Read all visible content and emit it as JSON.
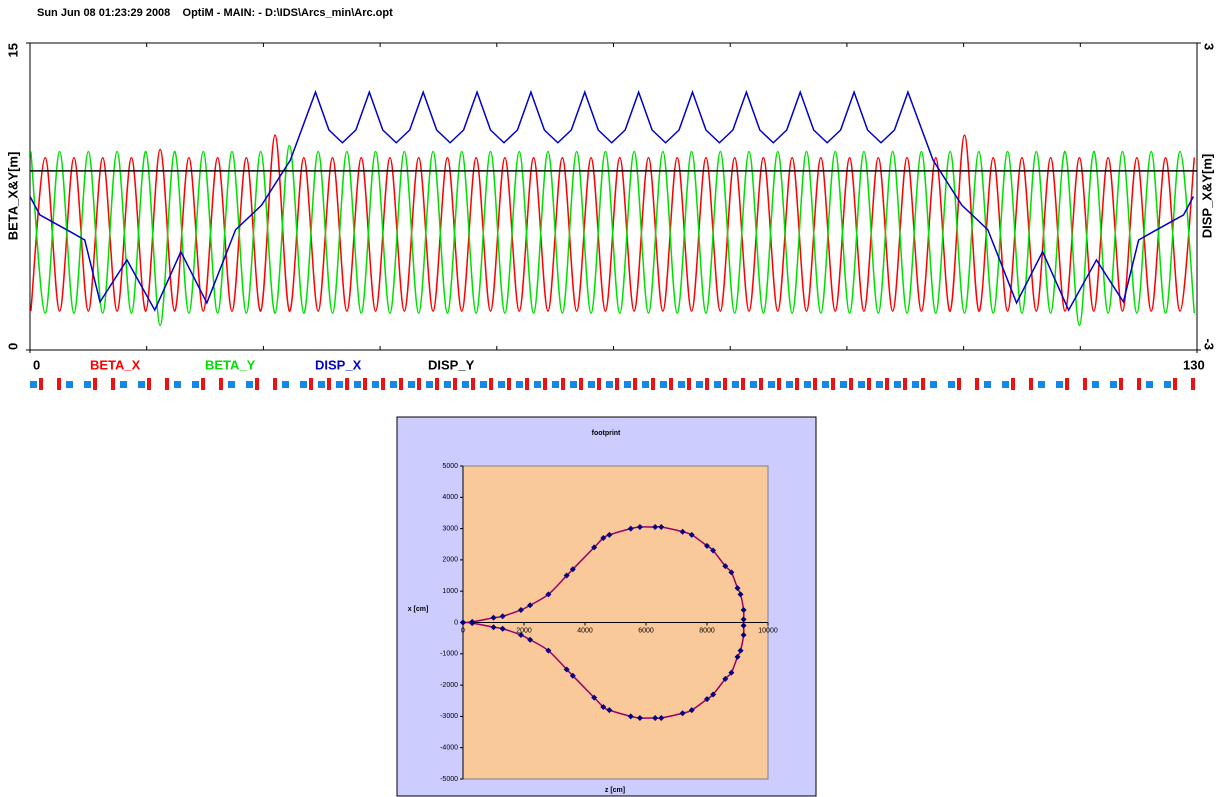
{
  "chart_data": [
    {
      "type": "line",
      "title": "Sun Jun 08 01:23:29 2008    OptiM - MAIN: - D:\\IDS\\Arcs_min\\Arc.opt",
      "y_label": "BETA_X&Y[m]",
      "y2_label": "DISP_X&Y[m]",
      "xlim": [
        0,
        130
      ],
      "xticks": [
        0,
        130
      ],
      "ylim": [
        0,
        15
      ],
      "yticks": [
        0,
        15
      ],
      "y2lim": [
        -3,
        3
      ],
      "y2ticks": [
        -3,
        3
      ],
      "x": [
        0.1,
        1.7,
        3.3,
        4.9,
        6.5,
        8.1,
        9.7,
        11.3,
        12.9,
        14.5,
        16.1,
        17.7,
        19.3,
        20.9,
        22.5,
        24.1,
        25.7,
        27.3,
        28.9,
        30.5,
        32.1,
        33.7,
        35.3,
        36.9,
        38.5,
        40.1,
        41.7,
        43.3,
        44.9,
        46.5,
        48.1,
        49.7,
        51.3,
        52.9,
        54.5,
        56.1,
        57.7,
        59.3,
        60.9,
        62.5,
        64.1,
        65.7,
        67.3,
        68.9,
        70.5,
        72.1,
        73.7,
        75.3,
        76.9,
        78.5,
        80.1,
        81.7,
        83.3,
        84.9,
        86.5,
        88.1,
        89.7,
        91.3,
        92.9,
        94.5,
        96.1,
        97.7,
        99.3,
        100.9,
        102.5,
        104.1,
        105.7,
        107.3,
        108.9,
        110.5,
        112.1,
        113.7,
        115.3,
        116.9,
        118.5,
        120.1,
        121.7,
        123.3,
        124.9,
        126.5,
        128.1,
        129.7
      ],
      "series": [
        {
          "name": "BETA_X",
          "color": "#ff0000",
          "values": [
            1.9,
            9.4,
            1.9,
            9.4,
            1.9,
            9.4,
            1.9,
            9.4,
            1.9,
            9.8,
            1.9,
            9.4,
            1.9,
            9.4,
            1.9,
            9.4,
            1.9,
            10.5,
            1.9,
            9.4,
            1.9,
            9.4,
            1.9,
            9.4,
            1.9,
            9.4,
            1.9,
            9.4,
            1.9,
            9.4,
            1.9,
            9.4,
            1.9,
            9.4,
            1.9,
            9.4,
            1.9,
            9.4,
            1.9,
            9.4,
            1.9,
            9.4,
            1.9,
            9.4,
            1.9,
            9.4,
            1.9,
            9.4,
            1.9,
            9.4,
            1.9,
            9.4,
            1.9,
            9.4,
            1.9,
            9.4,
            1.9,
            9.4,
            1.9,
            9.4,
            1.9,
            9.4,
            1.9,
            9.4,
            1.9,
            10.5,
            1.9,
            9.4,
            1.9,
            9.4,
            1.9,
            9.4,
            1.9,
            9.4,
            1.9,
            9.4,
            1.9,
            9.4,
            1.9,
            9.4,
            1.9,
            9.4
          ]
        },
        {
          "name": "BETA_Y",
          "color": "#00e000",
          "values": [
            9.7,
            1.8,
            9.7,
            1.8,
            9.7,
            1.8,
            9.7,
            1.8,
            9.7,
            1.2,
            9.7,
            1.8,
            9.7,
            1.8,
            9.7,
            1.8,
            9.7,
            1.8,
            10.0,
            1.8,
            9.7,
            1.8,
            9.7,
            1.8,
            9.7,
            1.8,
            9.7,
            1.8,
            9.7,
            1.8,
            9.7,
            1.8,
            9.7,
            1.8,
            9.7,
            1.8,
            9.7,
            1.8,
            9.7,
            1.8,
            9.7,
            1.8,
            9.7,
            1.8,
            9.7,
            1.8,
            9.7,
            1.8,
            9.7,
            1.8,
            9.7,
            1.8,
            9.7,
            1.8,
            9.7,
            1.8,
            9.7,
            1.8,
            9.7,
            1.8,
            9.7,
            1.8,
            9.7,
            1.8,
            9.7,
            1.8,
            9.7,
            1.8,
            9.7,
            1.8,
            9.7,
            1.8,
            9.7,
            1.2,
            9.7,
            1.8,
            9.7,
            1.8,
            9.7,
            1.8,
            9.7,
            1.8
          ]
        },
        {
          "name": "DISP_X",
          "color": "#0000cc",
          "axis": "y2",
          "x": [
            0,
            1.1,
            4.5,
            6.1,
            7.8,
            10.8,
            13.9,
            16.8,
            19.7,
            22.9,
            25.8,
            29.0,
            31.8,
            33.3,
            34.8,
            36.3,
            37.8,
            39.3,
            40.8,
            42.3,
            43.8,
            45.3,
            46.8,
            48.3,
            49.8,
            51.3,
            52.8,
            54.3,
            55.8,
            57.3,
            58.8,
            60.3,
            61.8,
            63.3,
            64.8,
            66.3,
            67.8,
            69.3,
            70.8,
            72.3,
            73.8,
            75.3,
            76.8,
            78.3,
            79.8,
            81.3,
            82.8,
            84.3,
            85.8,
            87.3,
            88.8,
            90.3,
            91.8,
            93.3,
            94.8,
            96.3,
            97.8,
            100.6,
            103.8,
            106.7,
            109.9,
            112.8,
            115.7,
            118.8,
            121.8,
            123.5,
            125.1,
            128.5,
            129.6
          ],
          "values": [
            0.0,
            -0.36,
            -0.69,
            -0.85,
            -2.06,
            -1.24,
            -2.22,
            -1.08,
            -2.08,
            -0.65,
            -0.17,
            0.71,
            2.04,
            1.3,
            1.05,
            1.3,
            2.04,
            1.3,
            1.05,
            1.3,
            2.04,
            1.3,
            1.05,
            1.3,
            2.04,
            1.3,
            1.05,
            1.3,
            2.04,
            1.3,
            1.05,
            1.3,
            2.04,
            1.3,
            1.05,
            1.3,
            2.04,
            1.3,
            1.05,
            1.3,
            2.04,
            1.3,
            1.05,
            1.3,
            2.04,
            1.3,
            1.05,
            1.3,
            2.04,
            1.3,
            1.05,
            1.3,
            2.04,
            1.3,
            1.05,
            1.3,
            2.04,
            0.71,
            -0.17,
            -0.65,
            -2.08,
            -1.08,
            -2.22,
            -1.24,
            -2.06,
            -0.85,
            -0.69,
            -0.36,
            0.0
          ]
        },
        {
          "name": "DISP_Y",
          "color": "#000000",
          "axis": "y2",
          "x": [
            0,
            130
          ],
          "values": [
            0.5,
            0.5
          ]
        }
      ]
    },
    {
      "type": "scatter",
      "title": "footprint",
      "x_label": "z [cm]",
      "y_label": "x [cm]",
      "line_color": "#990066",
      "marker_color": "#000080",
      "xlim": [
        0,
        10000
      ],
      "xticks": [
        0,
        2000,
        4000,
        6000,
        8000,
        10000
      ],
      "ylim": [
        -5000,
        5000
      ],
      "yticks": [
        -5000,
        -4000,
        -3000,
        -2000,
        -1000,
        0,
        1000,
        2000,
        3000,
        4000,
        5000
      ],
      "x": [
        0,
        300,
        1000,
        1300,
        1900,
        2200,
        2800,
        3400,
        3600,
        4300,
        4600,
        4800,
        5500,
        5800,
        6300,
        6500,
        7200,
        7500,
        8000,
        8200,
        8600,
        8800,
        9000,
        9100,
        9200,
        9200,
        9200,
        9200,
        9100,
        9000,
        8800,
        8600,
        8200,
        8000,
        7500,
        7200,
        6500,
        6300,
        5800,
        5500,
        4800,
        4600,
        4300,
        3600,
        3400,
        2800,
        2200,
        1900,
        1300,
        1000,
        300,
        0
      ],
      "values": [
        0,
        20,
        150,
        200,
        400,
        550,
        900,
        1500,
        1700,
        2400,
        2700,
        2800,
        3000,
        3050,
        3050,
        3050,
        2900,
        2800,
        2450,
        2300,
        1800,
        1600,
        1100,
        900,
        400,
        100,
        -100,
        -400,
        -900,
        -1100,
        -1600,
        -1800,
        -2300,
        -2450,
        -2800,
        -2900,
        -3050,
        -3050,
        -3050,
        -3000,
        -2800,
        -2700,
        -2400,
        -1700,
        -1500,
        -900,
        -550,
        -400,
        -200,
        -150,
        -20,
        0
      ]
    }
  ]
}
